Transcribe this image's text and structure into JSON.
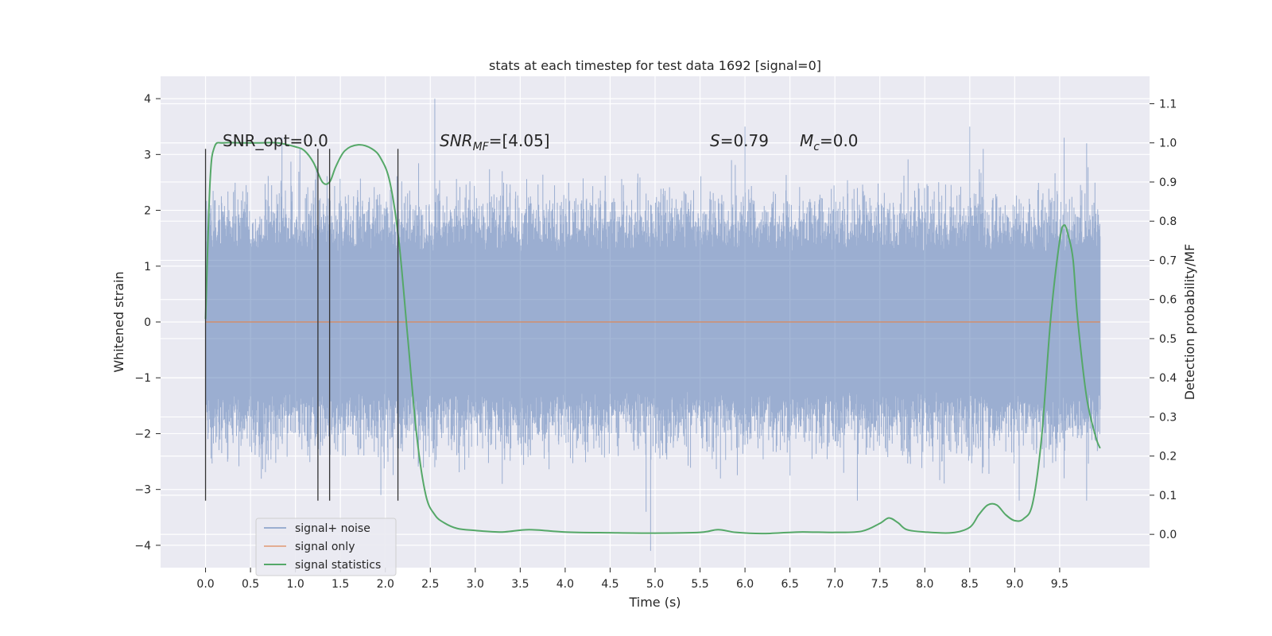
{
  "chart_data": {
    "type": "line",
    "title": "stats at each timestep for test data 1692 [signal=0]",
    "xlabel": "Time (s)",
    "ylabel": "Whitened strain",
    "y2label": "Detection probability/MF",
    "xlim": [
      -0.5,
      10.5
    ],
    "ylim": [
      -4.4,
      4.4
    ],
    "y2lim": [
      -0.085,
      1.17
    ],
    "x_ticks": [
      "0.0",
      "0.5",
      "1.0",
      "1.5",
      "2.0",
      "2.5",
      "3.0",
      "3.5",
      "4.0",
      "4.5",
      "5.0",
      "5.5",
      "6.0",
      "6.5",
      "7.0",
      "7.5",
      "8.0",
      "8.5",
      "9.0",
      "9.5"
    ],
    "y_ticks": [
      "4",
      "3",
      "2",
      "1",
      "0",
      "−1",
      "−2",
      "−3",
      "−4"
    ],
    "y2_ticks": [
      "1.1",
      "1.0",
      "0.9",
      "0.8",
      "0.7",
      "0.6",
      "0.5",
      "0.4",
      "0.3",
      "0.2",
      "0.1",
      "0.0"
    ],
    "annotations": {
      "snr_opt": "SNR_opt=0.0",
      "snr_mf_base": "SNR",
      "snr_mf_sub": "MF",
      "snr_mf_value": "=[4.05]",
      "s_base": "S",
      "s_value": "=0.79",
      "mc_base": "M",
      "mc_sub": "c",
      "mc_value": "=0.0"
    },
    "legend": {
      "placement": "lower-left",
      "entries": [
        "signal+ noise",
        "signal only",
        "signal statistics"
      ]
    },
    "grid": true,
    "series": [
      {
        "name": "signal+ noise",
        "color": "#4c72b0",
        "opacity": 0.5,
        "kind": "noise",
        "x_range": [
          0.0,
          9.95
        ],
        "typical_amplitude": 1.25,
        "peaks": [
          [
            0.0,
            2.6,
            -2.0
          ],
          [
            0.85,
            3.3,
            -2.1
          ],
          [
            1.05,
            3.1,
            -2.0
          ],
          [
            1.25,
            1.7,
            -2.8
          ],
          [
            1.38,
            2.3,
            -2.8
          ],
          [
            1.95,
            2.1,
            -3.1
          ],
          [
            2.55,
            4.0,
            -2.6
          ],
          [
            3.3,
            2.7,
            -2.9
          ],
          [
            4.9,
            2.3,
            -3.4
          ],
          [
            4.95,
            2.1,
            -4.1
          ],
          [
            5.85,
            2.9,
            -2.3
          ],
          [
            6.0,
            3.5,
            -2.2
          ],
          [
            7.25,
            2.4,
            -3.2
          ],
          [
            8.5,
            3.5,
            -2.4
          ],
          [
            8.65,
            3.1,
            -2.6
          ],
          [
            9.05,
            2.2,
            -3.2
          ],
          [
            9.55,
            3.3,
            -2.8
          ],
          [
            9.8,
            3.2,
            -3.2
          ]
        ]
      },
      {
        "name": "signal only",
        "color": "#dd8452",
        "values_x": [
          0.0,
          9.95
        ],
        "values_y": [
          0.0,
          0.0
        ]
      },
      {
        "name": "signal statistics",
        "color": "#55a868",
        "axis": "right",
        "x": [
          0.0,
          0.05,
          0.1,
          0.2,
          0.4,
          0.6,
          0.8,
          1.0,
          1.1,
          1.2,
          1.3,
          1.38,
          1.45,
          1.55,
          1.7,
          1.85,
          1.95,
          2.05,
          2.15,
          2.25,
          2.35,
          2.45,
          2.55,
          2.65,
          2.8,
          3.0,
          3.3,
          3.6,
          4.0,
          4.5,
          5.0,
          5.5,
          5.7,
          5.9,
          6.2,
          6.6,
          7.0,
          7.3,
          7.5,
          7.6,
          7.7,
          7.8,
          8.0,
          8.3,
          8.5,
          8.6,
          8.7,
          8.8,
          8.9,
          9.0,
          9.1,
          9.2,
          9.3,
          9.4,
          9.5,
          9.55,
          9.6,
          9.65,
          9.7,
          9.8,
          9.9,
          9.95
        ],
        "y": [
          0.55,
          0.9,
          0.99,
          1.0,
          1.0,
          1.0,
          1.0,
          0.99,
          0.98,
          0.95,
          0.9,
          0.9,
          0.94,
          0.98,
          0.995,
          0.985,
          0.96,
          0.9,
          0.75,
          0.5,
          0.25,
          0.1,
          0.05,
          0.03,
          0.015,
          0.01,
          0.006,
          0.012,
          0.006,
          0.004,
          0.003,
          0.005,
          0.012,
          0.005,
          0.002,
          0.006,
          0.005,
          0.008,
          0.028,
          0.042,
          0.03,
          0.012,
          0.006,
          0.004,
          0.018,
          0.05,
          0.075,
          0.075,
          0.05,
          0.035,
          0.04,
          0.08,
          0.25,
          0.55,
          0.75,
          0.79,
          0.76,
          0.7,
          0.55,
          0.35,
          0.25,
          0.22
        ]
      }
    ],
    "vertical_lines": [
      {
        "x": 0.0,
        "y_min": -3.2,
        "y_max": 3.1
      },
      {
        "x": 1.25,
        "y_min": -3.2,
        "y_max": 3.1
      },
      {
        "x": 1.38,
        "y_min": -3.2,
        "y_max": 3.1
      },
      {
        "x": 2.14,
        "y_min": -3.2,
        "y_max": 3.1
      }
    ],
    "colors": {
      "plot_bg": "#eaeaf2",
      "grid": "#ffffff",
      "vline": "#333333"
    }
  }
}
